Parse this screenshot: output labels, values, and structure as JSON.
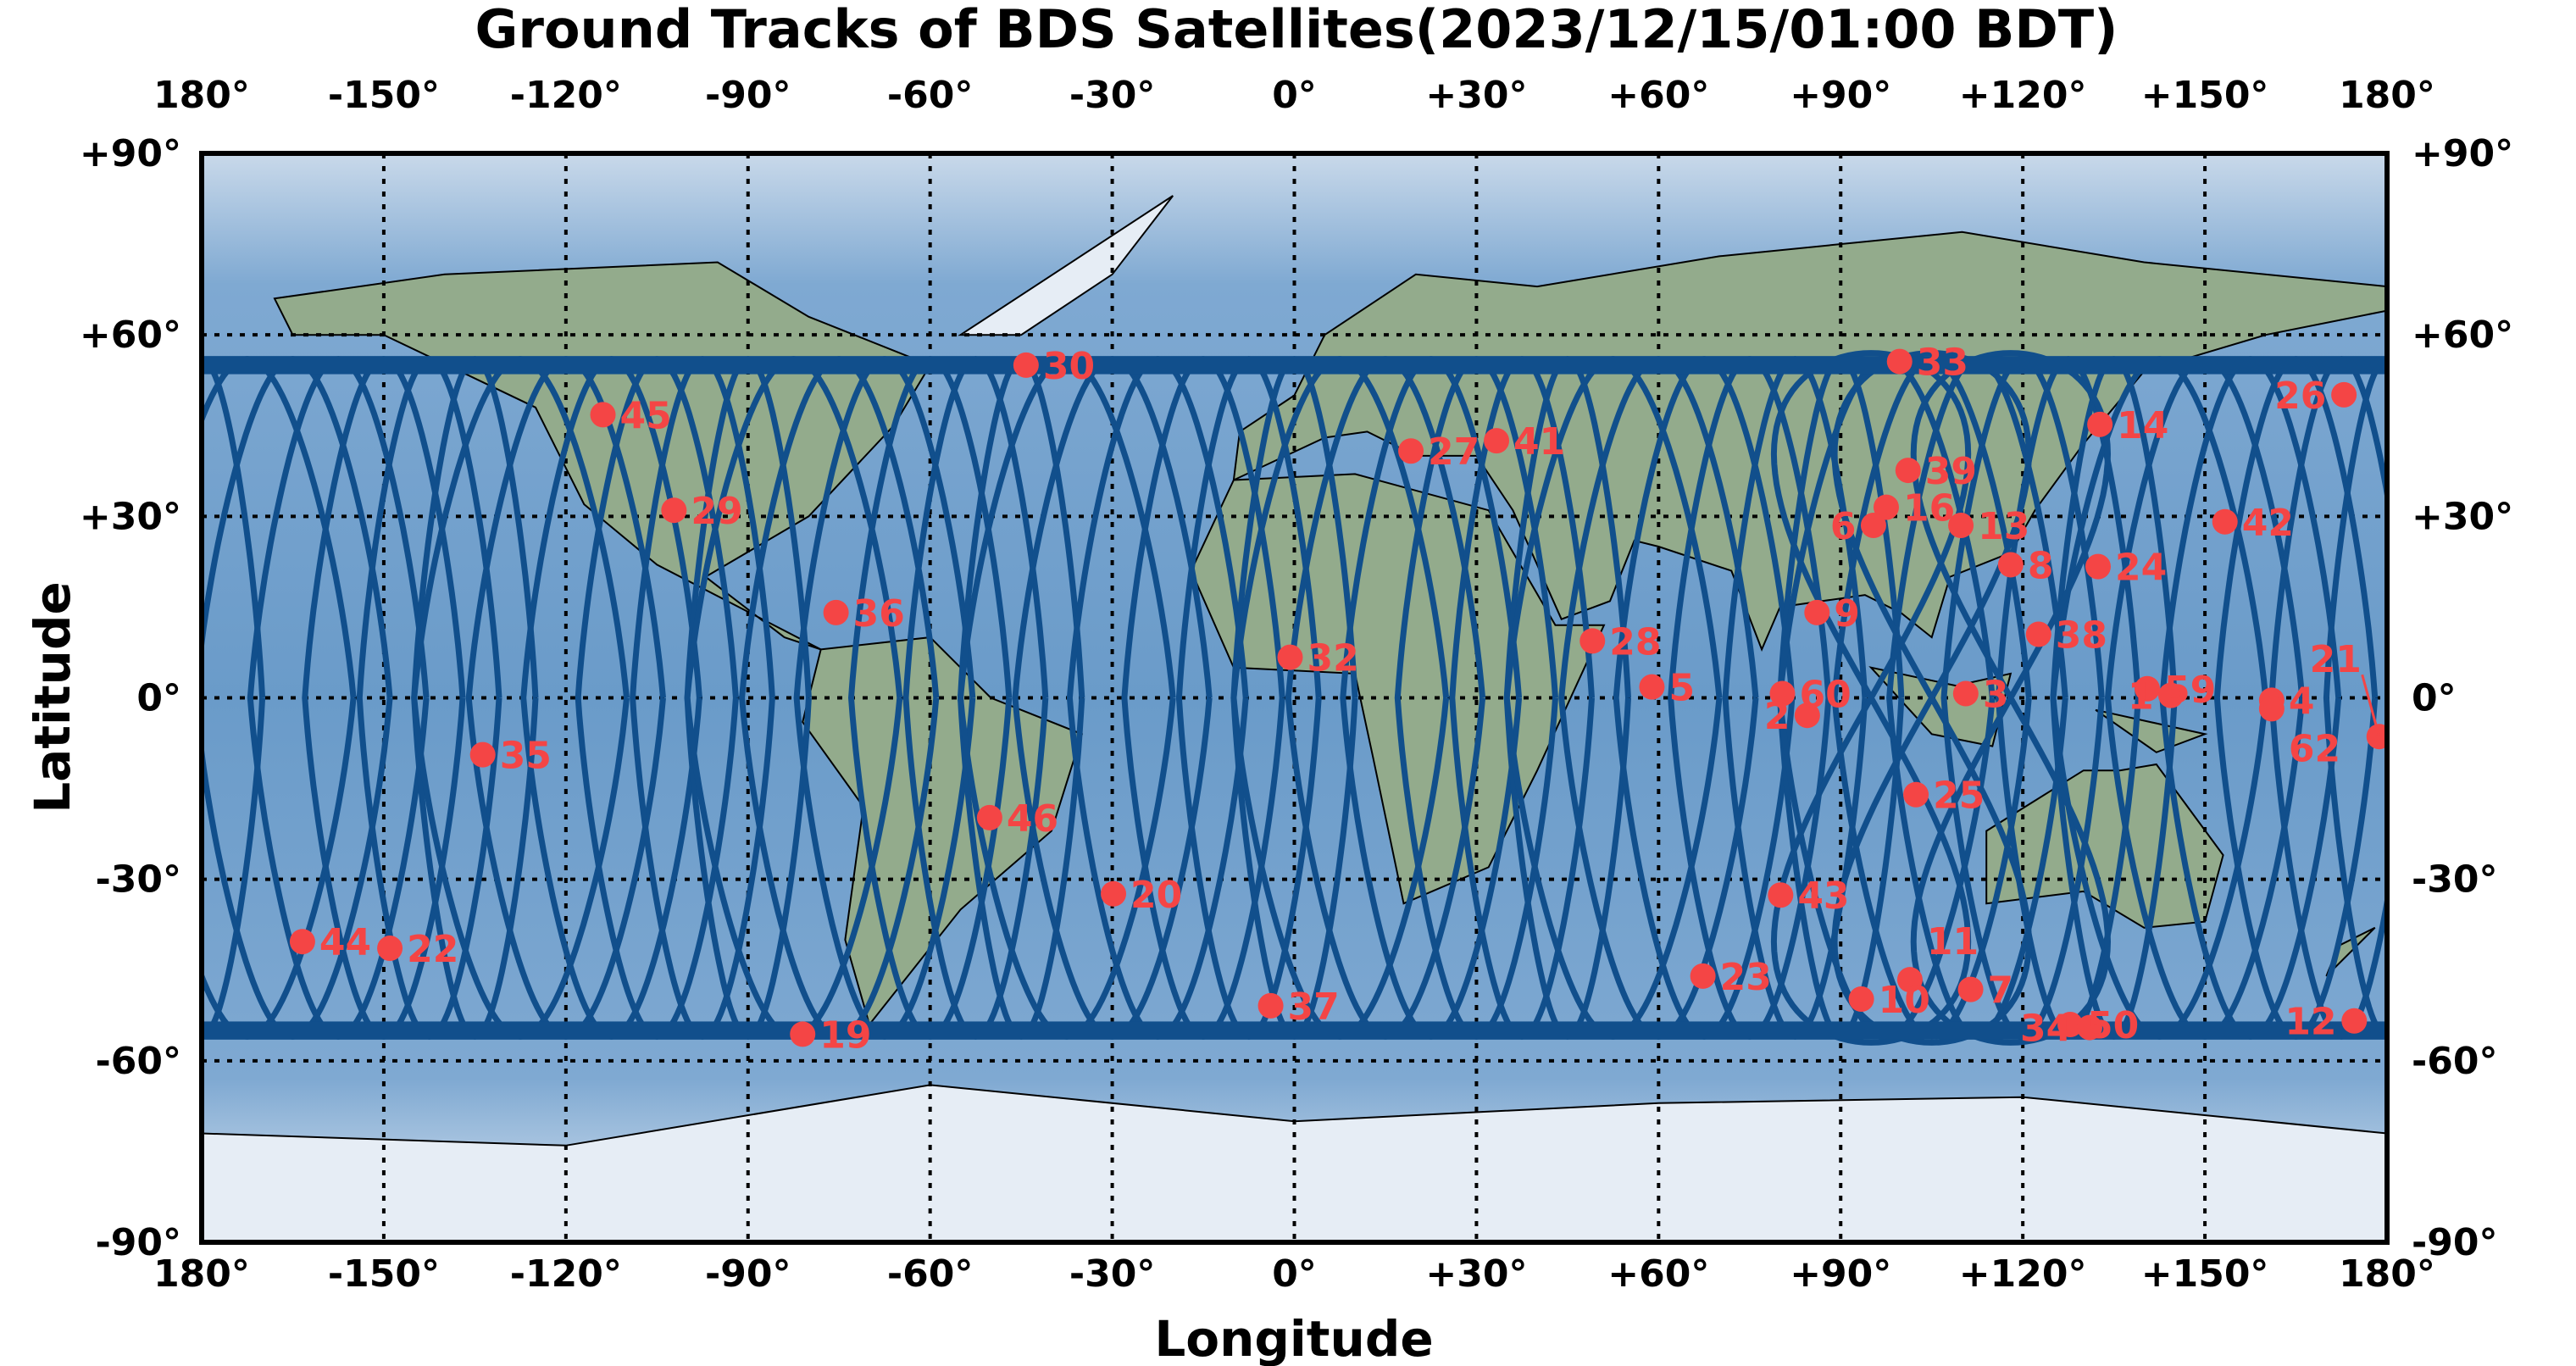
{
  "chart_data": {
    "type": "scatter",
    "title": "Ground Tracks of BDS Satellites(2023/12/15/01:00 BDT)",
    "xlabel": "Longitude",
    "ylabel": "Latitude",
    "xlim": [
      -180,
      180
    ],
    "ylim": [
      -90,
      90
    ],
    "grid": true,
    "x_ticks": [
      "180°",
      "-150°",
      "-120°",
      "-90°",
      "-60°",
      "-30°",
      "0°",
      "+30°",
      "+60°",
      "+90°",
      "+120°",
      "+150°",
      "180°"
    ],
    "y_ticks": [
      "+90°",
      "+60°",
      "+30°",
      "0°",
      "-30°",
      "-60°",
      "-90°"
    ],
    "colors": {
      "track": "#114f8c",
      "point": "#f44545",
      "ocean": "#6f9fcb",
      "land": "#8fae8a"
    },
    "satellites": [
      {
        "id": "30",
        "lon": -44.2,
        "lat": 55.0
      },
      {
        "id": "45",
        "lon": -113.9,
        "lat": 46.8
      },
      {
        "id": "29",
        "lon": -102.2,
        "lat": 31.0
      },
      {
        "id": "36",
        "lon": -75.5,
        "lat": 14.1
      },
      {
        "id": "35",
        "lon": -133.7,
        "lat": -9.4
      },
      {
        "id": "46",
        "lon": -50.2,
        "lat": -19.8
      },
      {
        "id": "20",
        "lon": -29.8,
        "lat": -32.4
      },
      {
        "id": "44",
        "lon": -163.4,
        "lat": -40.3
      },
      {
        "id": "22",
        "lon": -149.0,
        "lat": -41.4
      },
      {
        "id": "19",
        "lon": -81.0,
        "lat": -55.6
      },
      {
        "id": "37",
        "lon": -3.9,
        "lat": -50.9
      },
      {
        "id": "32",
        "lon": -0.7,
        "lat": 6.7
      },
      {
        "id": "27",
        "lon": 19.2,
        "lat": 40.8
      },
      {
        "id": "41",
        "lon": 33.3,
        "lat": 42.5
      },
      {
        "id": "28",
        "lon": 49.1,
        "lat": 9.4
      },
      {
        "id": "5",
        "lon": 58.9,
        "lat": 1.8
      },
      {
        "id": "23",
        "lon": 67.3,
        "lat": -46.0
      },
      {
        "id": "43",
        "lon": 80.1,
        "lat": -32.6
      },
      {
        "id": "60",
        "lon": 80.4,
        "lat": 0.7
      },
      {
        "id": "2",
        "lon": 84.5,
        "lat": -2.9
      },
      {
        "id": "9",
        "lon": 86.1,
        "lat": 14.1
      },
      {
        "id": "33",
        "lon": 99.7,
        "lat": 55.6
      },
      {
        "id": "39",
        "lon": 101.1,
        "lat": 37.6
      },
      {
        "id": "16",
        "lon": 97.5,
        "lat": 31.5
      },
      {
        "id": "6",
        "lon": 95.4,
        "lat": 28.5
      },
      {
        "id": "13",
        "lon": 109.8,
        "lat": 28.5
      },
      {
        "id": "8",
        "lon": 118.0,
        "lat": 22.0
      },
      {
        "id": "14",
        "lon": 132.7,
        "lat": 45.2
      },
      {
        "id": "24",
        "lon": 132.4,
        "lat": 21.7
      },
      {
        "id": "38",
        "lon": 122.6,
        "lat": 10.5
      },
      {
        "id": "3",
        "lon": 110.6,
        "lat": 0.7
      },
      {
        "id": "25",
        "lon": 102.4,
        "lat": -16.0
      },
      {
        "id": "10",
        "lon": 93.4,
        "lat": -49.8
      },
      {
        "id": "11",
        "lon": 101.4,
        "lat": -46.6
      },
      {
        "id": "7",
        "lon": 111.4,
        "lat": -48.2
      },
      {
        "id": "50",
        "lon": 127.8,
        "lat": -54.0
      },
      {
        "id": "34",
        "lon": 131.0,
        "lat": -54.5
      },
      {
        "id": "59",
        "lon": 140.5,
        "lat": 1.5
      },
      {
        "id": "1",
        "lon": 144.4,
        "lat": 0.4
      },
      {
        "id": "4",
        "lon": 161.0,
        "lat": -0.4
      },
      {
        "id": "62",
        "lon": 161.0,
        "lat": -1.8
      },
      {
        "id": "21",
        "lon": 178.7,
        "lat": -6.4
      },
      {
        "id": "12",
        "lon": 174.6,
        "lat": -53.4
      },
      {
        "id": "26",
        "lon": 172.9,
        "lat": 50.1
      },
      {
        "id": "42",
        "lon": 153.3,
        "lat": 29.1
      }
    ]
  }
}
